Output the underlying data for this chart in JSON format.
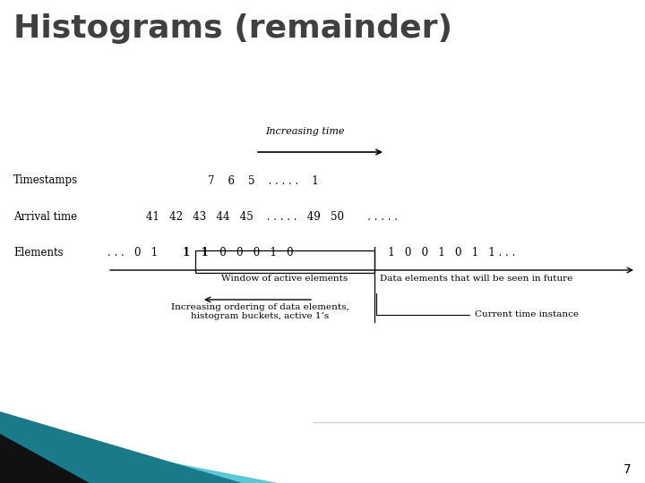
{
  "title": "Histograms (remainder)",
  "title_fontsize": 26,
  "title_color": "#404040",
  "title_fontweight": "bold",
  "bg_color": "#ffffff",
  "slide_number": "7",
  "increasing_time_label": "Increasing time",
  "timestamps_label": "Timestamps",
  "arrival_label": "Arrival time",
  "elements_label": "Elements",
  "window_label": "Window of active elements",
  "future_label": "Data elements that will be seen in future",
  "increasing_order_label": "Increasing ordering of data elements,\nhistogram buckets, active 1’s",
  "current_time_label": "Current time instance",
  "footer_line_color": "#bbbbbb",
  "teal_dark": "#1a7a8a",
  "teal_light": "#5bc8d8",
  "black_tri": "#111111"
}
